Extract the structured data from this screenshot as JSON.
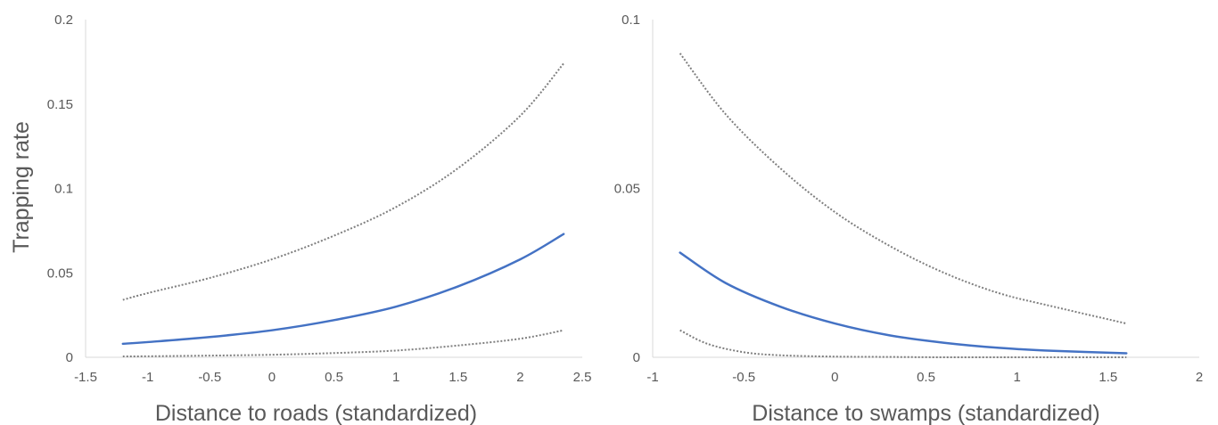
{
  "chart_data": [
    {
      "type": "line",
      "ylabel": "Trapping rate",
      "xlabel": "Distance to roads (standardized)",
      "xlim": [
        -1.5,
        2.5
      ],
      "ylim": [
        0,
        0.2
      ],
      "x_ticks": [
        "-1.5",
        "-1",
        "-0.5",
        "0",
        "0.5",
        "1",
        "1.5",
        "2",
        "2.5"
      ],
      "y_ticks": [
        "0",
        "0.05",
        "0.1",
        "0.15",
        "0.2"
      ],
      "grid": false,
      "series": [
        {
          "style": "dotted",
          "color": "#7f7f7f",
          "x": [
            -1.2,
            -1.0,
            -0.5,
            0.0,
            0.5,
            1.0,
            1.5,
            2.0,
            2.35
          ],
          "y": [
            0.034,
            0.038,
            0.047,
            0.058,
            0.072,
            0.089,
            0.112,
            0.143,
            0.174
          ]
        },
        {
          "style": "solid",
          "color": "#4472c4",
          "x": [
            -1.2,
            -1.0,
            -0.5,
            0.0,
            0.5,
            1.0,
            1.5,
            2.0,
            2.35
          ],
          "y": [
            0.008,
            0.009,
            0.012,
            0.016,
            0.022,
            0.03,
            0.042,
            0.058,
            0.073
          ]
        },
        {
          "style": "dotted",
          "color": "#7f7f7f",
          "x": [
            -1.2,
            -1.0,
            -0.5,
            0.0,
            0.5,
            1.0,
            1.5,
            2.0,
            2.35
          ],
          "y": [
            0.0005,
            0.0006,
            0.001,
            0.0015,
            0.0025,
            0.004,
            0.007,
            0.011,
            0.016
          ]
        }
      ]
    },
    {
      "type": "line",
      "ylabel": "",
      "xlabel": "Distance to swamps (standardized)",
      "xlim": [
        -1,
        2
      ],
      "ylim": [
        0,
        0.1
      ],
      "x_ticks": [
        "-1",
        "-0.5",
        "0",
        "0.5",
        "1",
        "1.5",
        "2"
      ],
      "y_ticks": [
        "0",
        "0.05",
        "0.1"
      ],
      "grid": false,
      "series": [
        {
          "style": "dotted",
          "color": "#7f7f7f",
          "x": [
            -0.85,
            -0.6,
            -0.3,
            0.0,
            0.3,
            0.6,
            0.9,
            1.2,
            1.6
          ],
          "y": [
            0.09,
            0.072,
            0.056,
            0.043,
            0.033,
            0.025,
            0.019,
            0.015,
            0.01
          ]
        },
        {
          "style": "solid",
          "color": "#4472c4",
          "x": [
            -0.85,
            -0.6,
            -0.3,
            0.0,
            0.3,
            0.6,
            0.9,
            1.2,
            1.6
          ],
          "y": [
            0.031,
            0.022,
            0.015,
            0.01,
            0.0065,
            0.0043,
            0.0028,
            0.0019,
            0.0012
          ]
        },
        {
          "style": "dotted",
          "color": "#7f7f7f",
          "x": [
            -0.85,
            -0.7,
            -0.5,
            -0.3,
            0.0,
            0.3,
            0.6,
            1.0,
            1.6
          ],
          "y": [
            0.008,
            0.004,
            0.0015,
            0.0006,
            0.0002,
            0.0001,
            0.0,
            0.0,
            0.0
          ]
        }
      ]
    }
  ]
}
